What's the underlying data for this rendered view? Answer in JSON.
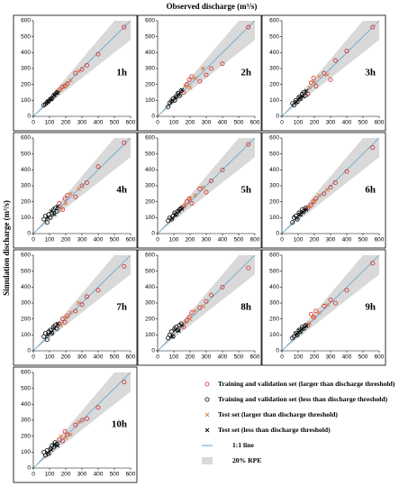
{
  "title": "Observed discharge (m³/s)",
  "y_label": "Simulation discharge (m³/s)",
  "reference_line": {
    "name": "1:1 line",
    "color": "#5ba3d0"
  },
  "band": {
    "name": "20% RPE",
    "percent": 20,
    "color": "#d9d9d9"
  },
  "chart_data": [
    {
      "type": "scatter",
      "label": "1h",
      "xlim": [
        0,
        600
      ],
      "ylim": [
        0,
        600
      ],
      "xticks": [
        0,
        100,
        200,
        300,
        400,
        500,
        600
      ],
      "yticks": [
        0,
        100,
        200,
        300,
        400,
        500,
        600
      ],
      "series": [
        {
          "name": "Training and validation set (larger than discharge threshold)",
          "color": "#d62728",
          "marker": "circle",
          "x": [
            160,
            180,
            195,
            210,
            260,
            300,
            330,
            400,
            560
          ],
          "values": [
            165,
            185,
            190,
            205,
            270,
            295,
            320,
            390,
            560
          ]
        },
        {
          "name": "Training and validation set (less than discharge threshold)",
          "color": "#000000",
          "marker": "circle",
          "x": [
            65,
            75,
            85,
            95,
            105,
            115,
            125,
            135,
            145
          ],
          "values": [
            70,
            78,
            88,
            96,
            108,
            112,
            128,
            138,
            150
          ]
        },
        {
          "name": "Test set (larger than discharge threshold)",
          "color": "#e07b39",
          "marker": "x",
          "x": [
            170,
            200,
            230,
            280
          ],
          "values": [
            172,
            195,
            225,
            285
          ]
        },
        {
          "name": "Test set (less than discharge threshold)",
          "color": "#000000",
          "marker": "x",
          "x": [
            90,
            110,
            130,
            150
          ],
          "values": [
            92,
            108,
            135,
            148
          ]
        }
      ]
    },
    {
      "type": "scatter",
      "label": "2h",
      "xlim": [
        0,
        600
      ],
      "ylim": [
        0,
        600
      ],
      "xticks": [
        0,
        100,
        200,
        300,
        400,
        500,
        600
      ],
      "yticks": [
        0,
        100,
        200,
        300,
        400,
        500,
        600
      ],
      "series": [
        {
          "color": "#d62728",
          "marker": "circle",
          "x": [
            160,
            180,
            195,
            210,
            260,
            300,
            330,
            400,
            560
          ],
          "values": [
            150,
            200,
            230,
            250,
            220,
            260,
            300,
            330,
            560
          ]
        },
        {
          "color": "#000000",
          "marker": "circle",
          "x": [
            65,
            75,
            85,
            95,
            105,
            115,
            125,
            135,
            145
          ],
          "values": [
            60,
            85,
            95,
            110,
            100,
            125,
            145,
            130,
            160
          ]
        },
        {
          "color": "#e07b39",
          "marker": "x",
          "x": [
            170,
            200,
            230,
            280
          ],
          "values": [
            190,
            180,
            240,
            300
          ]
        },
        {
          "color": "#000000",
          "marker": "x",
          "x": [
            90,
            110,
            130,
            150
          ],
          "values": [
            100,
            120,
            140,
            165
          ]
        }
      ]
    },
    {
      "type": "scatter",
      "label": "3h",
      "xlim": [
        0,
        600
      ],
      "ylim": [
        0,
        600
      ],
      "xticks": [
        0,
        100,
        200,
        300,
        400,
        500,
        600
      ],
      "yticks": [
        0,
        100,
        200,
        300,
        400,
        500,
        600
      ],
      "series": [
        {
          "color": "#d62728",
          "marker": "circle",
          "x": [
            160,
            180,
            195,
            210,
            260,
            300,
            330,
            400,
            560
          ],
          "values": [
            140,
            210,
            240,
            190,
            270,
            230,
            350,
            410,
            560
          ]
        },
        {
          "color": "#000000",
          "marker": "circle",
          "x": [
            65,
            75,
            85,
            95,
            105,
            115,
            125,
            135,
            145
          ],
          "values": [
            80,
            70,
            100,
            90,
            120,
            110,
            140,
            150,
            130
          ]
        },
        {
          "color": "#e07b39",
          "marker": "x",
          "x": [
            170,
            200,
            230,
            280
          ],
          "values": [
            180,
            215,
            250,
            260
          ]
        },
        {
          "color": "#000000",
          "marker": "x",
          "x": [
            90,
            110,
            130,
            150
          ],
          "values": [
            90,
            115,
            125,
            160
          ]
        }
      ]
    },
    {
      "type": "scatter",
      "label": "4h",
      "xlim": [
        0,
        600
      ],
      "ylim": [
        0,
        600
      ],
      "xticks": [
        0,
        100,
        200,
        300,
        400,
        500,
        600
      ],
      "yticks": [
        0,
        100,
        200,
        300,
        400,
        500,
        600
      ],
      "series": [
        {
          "color": "#d62728",
          "marker": "circle",
          "x": [
            160,
            180,
            195,
            210,
            260,
            300,
            330,
            400,
            560
          ],
          "values": [
            190,
            150,
            220,
            240,
            230,
            300,
            320,
            420,
            570
          ]
        },
        {
          "color": "#000000",
          "marker": "circle",
          "x": [
            65,
            75,
            85,
            95,
            105,
            115,
            125,
            135,
            145
          ],
          "values": [
            90,
            110,
            70,
            120,
            100,
            130,
            150,
            160,
            140
          ]
        },
        {
          "color": "#e07b39",
          "marker": "x",
          "x": [
            170,
            200,
            230,
            280
          ],
          "values": [
            160,
            190,
            250,
            280
          ]
        },
        {
          "color": "#000000",
          "marker": "x",
          "x": [
            90,
            110,
            130,
            150
          ],
          "values": [
            100,
            140,
            120,
            170
          ]
        }
      ]
    },
    {
      "type": "scatter",
      "label": "5h",
      "xlim": [
        0,
        600
      ],
      "ylim": [
        0,
        600
      ],
      "xticks": [
        0,
        100,
        200,
        300,
        400,
        500,
        600
      ],
      "yticks": [
        0,
        100,
        200,
        300,
        400,
        500,
        600
      ],
      "series": [
        {
          "color": "#d62728",
          "marker": "circle",
          "x": [
            160,
            180,
            195,
            210,
            260,
            300,
            330,
            400,
            560
          ],
          "values": [
            170,
            200,
            220,
            190,
            280,
            260,
            330,
            400,
            560
          ]
        },
        {
          "color": "#000000",
          "marker": "circle",
          "x": [
            65,
            75,
            85,
            95,
            105,
            115,
            125,
            135,
            145
          ],
          "values": [
            80,
            100,
            90,
            110,
            130,
            120,
            140,
            150,
            160
          ]
        },
        {
          "color": "#e07b39",
          "marker": "x",
          "x": [
            170,
            200,
            230,
            280
          ],
          "values": [
            180,
            220,
            240,
            290
          ]
        },
        {
          "color": "#000000",
          "marker": "x",
          "x": [
            90,
            110,
            130,
            150
          ],
          "values": [
            95,
            120,
            140,
            155
          ]
        }
      ]
    },
    {
      "type": "scatter",
      "label": "6h",
      "xlim": [
        0,
        600
      ],
      "ylim": [
        0,
        600
      ],
      "xticks": [
        0,
        100,
        200,
        300,
        400,
        500,
        600
      ],
      "yticks": [
        0,
        100,
        200,
        300,
        400,
        500,
        600
      ],
      "series": [
        {
          "color": "#d62728",
          "marker": "circle",
          "x": [
            160,
            180,
            195,
            210,
            260,
            300,
            330,
            400,
            560
          ],
          "values": [
            160,
            180,
            200,
            220,
            250,
            290,
            320,
            390,
            540
          ]
        },
        {
          "color": "#000000",
          "marker": "circle",
          "x": [
            65,
            75,
            85,
            95,
            105,
            115,
            125,
            135,
            145
          ],
          "values": [
            70,
            100,
            110,
            90,
            130,
            120,
            150,
            140,
            160
          ]
        },
        {
          "color": "#e07b39",
          "marker": "x",
          "x": [
            170,
            200,
            230,
            280
          ],
          "values": [
            170,
            205,
            240,
            275
          ]
        },
        {
          "color": "#000000",
          "marker": "x",
          "x": [
            90,
            110,
            130,
            150
          ],
          "values": [
            100,
            120,
            135,
            150
          ]
        }
      ]
    },
    {
      "type": "scatter",
      "label": "7h",
      "xlim": [
        0,
        600
      ],
      "ylim": [
        0,
        600
      ],
      "xticks": [
        0,
        100,
        200,
        300,
        400,
        500,
        600
      ],
      "yticks": [
        0,
        100,
        200,
        300,
        400,
        500,
        600
      ],
      "series": [
        {
          "color": "#d62728",
          "marker": "circle",
          "x": [
            160,
            180,
            195,
            210,
            260,
            300,
            330,
            400,
            560
          ],
          "values": [
            170,
            200,
            180,
            220,
            250,
            290,
            340,
            380,
            530
          ]
        },
        {
          "color": "#000000",
          "marker": "circle",
          "x": [
            65,
            75,
            85,
            95,
            105,
            115,
            125,
            135,
            145
          ],
          "values": [
            90,
            110,
            70,
            120,
            130,
            110,
            150,
            160,
            140
          ]
        },
        {
          "color": "#e07b39",
          "marker": "x",
          "x": [
            170,
            200,
            230,
            280
          ],
          "values": [
            160,
            210,
            240,
            300
          ]
        },
        {
          "color": "#000000",
          "marker": "x",
          "x": [
            90,
            110,
            130,
            150
          ],
          "values": [
            100,
            115,
            140,
            170
          ]
        }
      ]
    },
    {
      "type": "scatter",
      "label": "8h",
      "xlim": [
        0,
        600
      ],
      "ylim": [
        0,
        600
      ],
      "xticks": [
        0,
        100,
        200,
        300,
        400,
        500,
        600
      ],
      "yticks": [
        0,
        100,
        200,
        300,
        400,
        500,
        600
      ],
      "series": [
        {
          "color": "#d62728",
          "marker": "circle",
          "x": [
            160,
            180,
            195,
            210,
            260,
            300,
            330,
            400,
            560
          ],
          "values": [
            150,
            190,
            210,
            240,
            270,
            310,
            350,
            400,
            520
          ]
        },
        {
          "color": "#000000",
          "marker": "circle",
          "x": [
            65,
            75,
            85,
            95,
            105,
            115,
            125,
            135,
            145
          ],
          "values": [
            80,
            100,
            120,
            90,
            140,
            150,
            130,
            160,
            170
          ]
        },
        {
          "color": "#e07b39",
          "marker": "x",
          "x": [
            170,
            200,
            230,
            280
          ],
          "values": [
            180,
            200,
            250,
            280
          ]
        },
        {
          "color": "#000000",
          "marker": "x",
          "x": [
            90,
            110,
            130,
            150
          ],
          "values": [
            90,
            130,
            125,
            160
          ]
        }
      ]
    },
    {
      "type": "scatter",
      "label": "9h",
      "xlim": [
        0,
        600
      ],
      "ylim": [
        0,
        600
      ],
      "xticks": [
        0,
        100,
        200,
        300,
        400,
        500,
        600
      ],
      "yticks": [
        0,
        100,
        200,
        300,
        400,
        500,
        600
      ],
      "series": [
        {
          "color": "#d62728",
          "marker": "circle",
          "x": [
            160,
            180,
            195,
            210,
            260,
            300,
            330,
            400,
            560
          ],
          "values": [
            160,
            230,
            210,
            250,
            280,
            320,
            300,
            380,
            550
          ]
        },
        {
          "color": "#000000",
          "marker": "circle",
          "x": [
            65,
            75,
            85,
            95,
            105,
            115,
            125,
            135,
            145
          ],
          "values": [
            80,
            90,
            110,
            100,
            130,
            120,
            150,
            140,
            160
          ]
        },
        {
          "color": "#e07b39",
          "marker": "x",
          "x": [
            170,
            200,
            230,
            280
          ],
          "values": [
            175,
            210,
            240,
            290
          ]
        },
        {
          "color": "#000000",
          "marker": "x",
          "x": [
            90,
            110,
            130,
            150
          ],
          "values": [
            105,
            125,
            140,
            155
          ]
        }
      ]
    },
    {
      "type": "scatter",
      "label": "10h",
      "xlim": [
        0,
        600
      ],
      "ylim": [
        0,
        600
      ],
      "xticks": [
        0,
        100,
        200,
        300,
        400,
        500,
        600
      ],
      "yticks": [
        0,
        100,
        200,
        300,
        400,
        500,
        600
      ],
      "series": [
        {
          "color": "#d62728",
          "marker": "circle",
          "x": [
            160,
            180,
            195,
            210,
            260,
            300,
            330,
            400,
            560
          ],
          "values": [
            180,
            170,
            230,
            210,
            270,
            300,
            310,
            380,
            540
          ]
        },
        {
          "color": "#000000",
          "marker": "circle",
          "x": [
            65,
            75,
            85,
            95,
            105,
            115,
            125,
            135,
            145
          ],
          "values": [
            100,
            80,
            110,
            90,
            120,
            140,
            130,
            160,
            150
          ]
        },
        {
          "color": "#e07b39",
          "marker": "x",
          "x": [
            170,
            200,
            230,
            280
          ],
          "values": [
            200,
            190,
            210,
            290
          ]
        },
        {
          "color": "#000000",
          "marker": "x",
          "x": [
            90,
            110,
            130,
            150
          ],
          "values": [
            95,
            115,
            150,
            140
          ]
        }
      ]
    }
  ]
}
